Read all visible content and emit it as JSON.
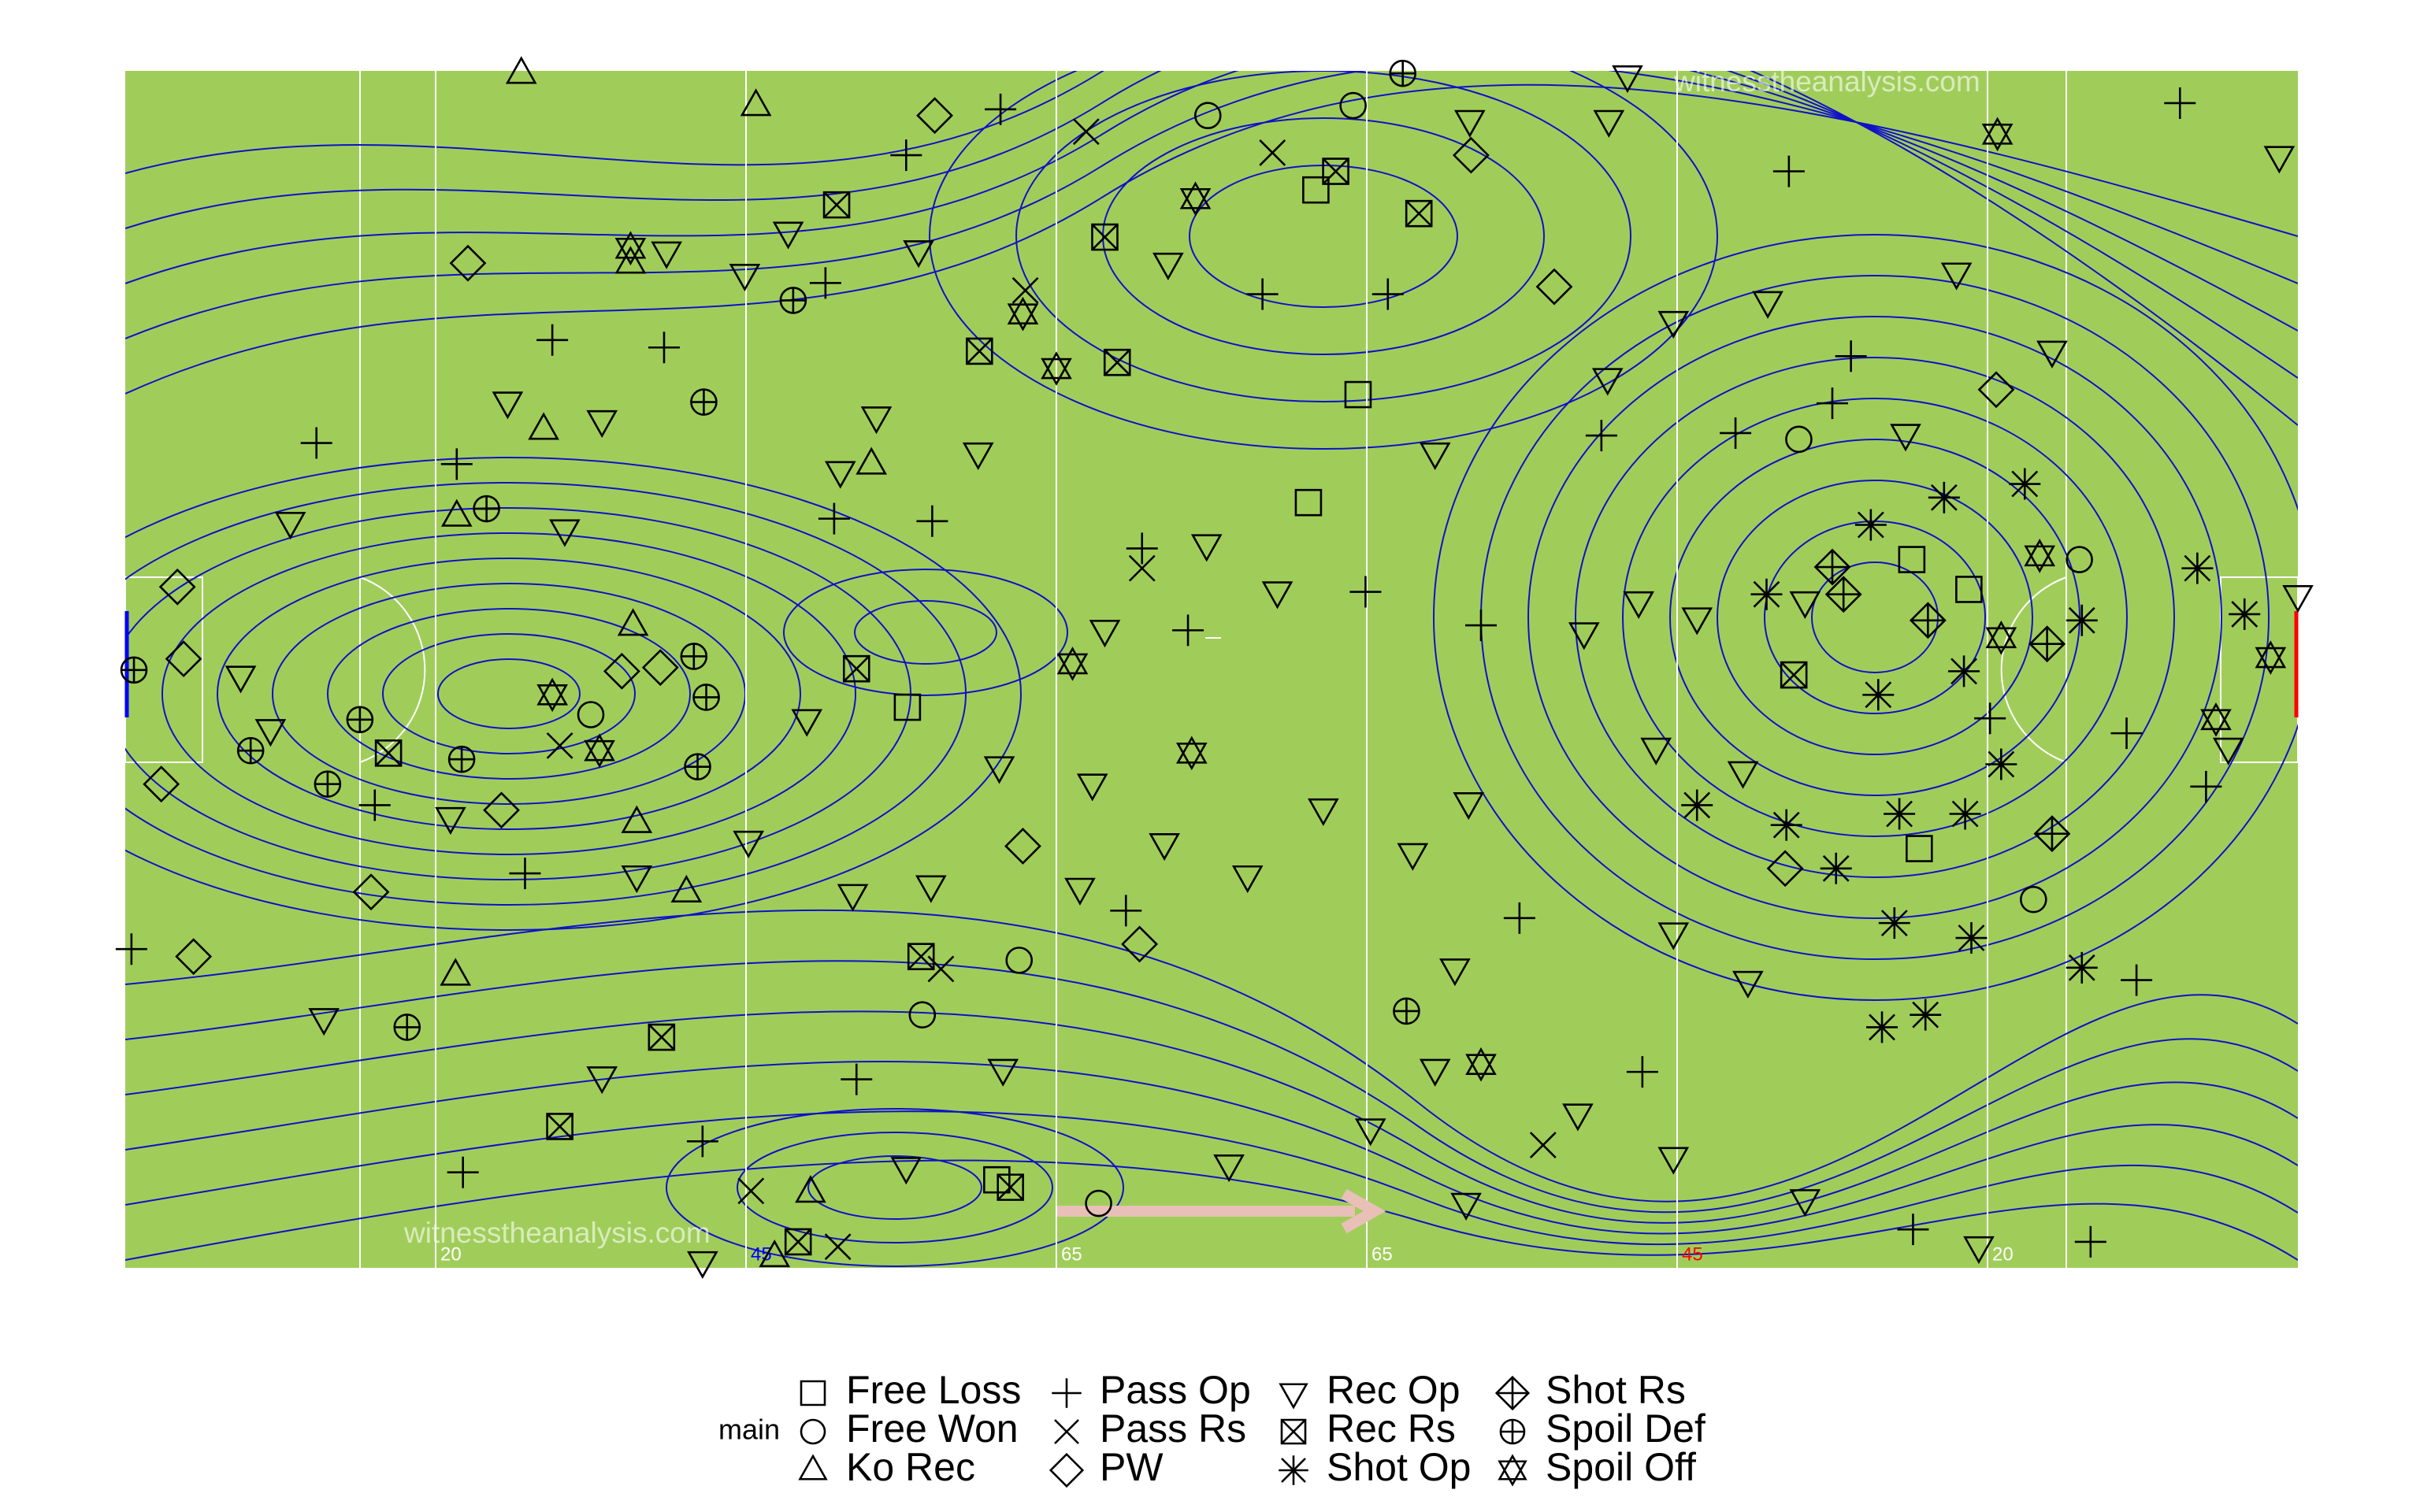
{
  "chart_data": {
    "type": "scatter",
    "xlim": [
      0,
      175
    ],
    "ylim": [
      0,
      96.5
    ],
    "xticks": [
      {
        "value": 25,
        "label": "20"
      },
      {
        "value": 50,
        "label": "45"
      },
      {
        "value": 75,
        "label": "65"
      },
      {
        "value": 100,
        "label": "65"
      },
      {
        "value": 125,
        "label": "45"
      },
      {
        "value": 150,
        "label": "20"
      }
    ],
    "xtick_colors": [
      "#ffffff",
      "#0000ff",
      "#ffffff",
      "#ffffff",
      "#ff0000",
      "#ffffff"
    ],
    "grid": true,
    "legend_title": "main",
    "legend_position": "bottom",
    "annotations": [
      "witnesstheanalysis.com",
      "witnesstheanalysis.com"
    ],
    "series": [
      {
        "name": "Free Loss",
        "marker": "square",
        "color": "#000000",
        "x": [
          99.3,
          95.3,
          63,
          70.2,
          144.5,
          143.9,
          148.5,
          95.9
        ],
        "values": [
          70.4,
          61.7,
          45.2,
          7.1,
          33.8,
          57.1,
          54.7,
          86.9
        ]
      },
      {
        "name": "Free Won",
        "marker": "circle",
        "color": "#000000",
        "x": [
          87.2,
          98.9,
          37.5,
          64.2,
          78.4,
          153.7,
          157.4,
          134.8,
          72
        ],
        "values": [
          92.9,
          93.7,
          44.6,
          20.4,
          5.2,
          29.7,
          57.1,
          66.8,
          24.8
        ]
      },
      {
        "name": "Ko Rec",
        "marker": "triangle",
        "color": "#000000",
        "x": [
          31.9,
          50.8,
          40.7,
          33.7,
          60.1,
          26.7,
          40.9,
          41.2,
          45.2,
          26.6,
          55.2,
          52.3
        ],
        "values": [
          96.3,
          93.7,
          81,
          67.6,
          64.8,
          60.6,
          51.8,
          35.9,
          30.3,
          23.6,
          6.1,
          0.9
        ]
      },
      {
        "name": "Pass Op",
        "marker": "plus",
        "color": "#000000",
        "x": [
          70.5,
          62.9,
          56.4,
          43.4,
          15.4,
          26.7,
          57.1,
          65,
          81.9,
          85.6,
          99.9,
          109.2,
          129.7,
          137.5,
          165.5,
          134,
          161.2,
          0.5,
          32.2,
          80.6,
          112.3,
          122.2,
          144,
          158.3,
          162,
          58.9,
          46.5,
          27.2,
          20.1,
          167.6,
          150.2,
          118.9,
          101.7,
          91.6,
          34.4,
          139
        ],
        "values": [
          93.4,
          89.7,
          79.4,
          74.2,
          66.5,
          64.8,
          60.4,
          60.2,
          58,
          51.4,
          54.5,
          51.8,
          67.3,
          69.7,
          93.9,
          88.4,
          43.1,
          25.7,
          31.8,
          28.8,
          28.2,
          15.8,
          3.1,
          2.1,
          23.2,
          15.2,
          10.2,
          7.7,
          37.3,
          38.8,
          44.3,
          67.1,
          78.5,
          78.5,
          74.8,
          73.5
        ]
      },
      {
        "name": "Pass Rs",
        "marker": "cross",
        "color": "#000000",
        "x": [
          92.4,
          77.4,
          81.9,
          65.7,
          57.4,
          114.2,
          50.4,
          72.5,
          35
        ],
        "values": [
          89.9,
          91.6,
          56.4,
          24.1,
          1.7,
          9.9,
          6.2,
          78.8,
          42.1
        ]
      },
      {
        "name": "PW",
        "marker": "diamond",
        "color": "#000000",
        "x": [
          27.6,
          65.2,
          108.4,
          115.1,
          150.7,
          4.2,
          4.7,
          2.9,
          30.3,
          19.8,
          5.5,
          72.3,
          81.7,
          133.7,
          43.1,
          40
        ],
        "values": [
          81,
          92.9,
          89.7,
          79.1,
          70.8,
          54.9,
          49.1,
          39,
          36.9,
          30.3,
          25.1,
          34,
          26.1,
          32.2,
          48.4,
          48.1
        ]
      },
      {
        "name": "Rec Op",
        "marker": "triangle-down",
        "color": "#000000",
        "x": [
          121,
          173.5,
          119.5,
          108.3,
          84,
          63.9,
          49.9,
          13.3,
          9.3,
          11.7,
          16,
          38.4,
          58.6,
          64.9,
          76.9,
          83.7,
          90.4,
          96.5,
          105.5,
          119.4,
          124.7,
          132.3,
          147.5,
          155.2,
          143.4,
          175,
          169.4,
          149.3,
          135.3,
          124.7,
          117,
          108,
          100.3,
          88.9,
          70.7,
          62.9,
          46.5,
          105.5,
          130.7,
          124.7,
          123.3,
          135.3,
          130.3,
          121.9,
          92.8,
          87.1,
          78.9,
          77.9,
          70.4,
          54.9,
          50.2,
          41.2,
          26.2,
          35.4,
          30.8,
          38.4,
          43.6,
          53.4,
          60.5,
          68.7,
          57.6,
          108.2,
          103.7,
          107.1,
          117.5,
          126.6
        ],
        "values": [
          96.1,
          89.6,
          92.5,
          92.5,
          81,
          82,
          80.1,
          60.1,
          47.7,
          43.4,
          20.1,
          15.4,
          30.1,
          30.8,
          30.6,
          34.2,
          31.6,
          37,
          65.7,
          71.7,
          76.3,
          77.9,
          80.2,
          73.9,
          67.2,
          54.2,
          41.9,
          1.7,
          5.5,
          8.9,
          12.4,
          5.2,
          11.2,
          8.3,
          16,
          8.1,
          0.5,
          16,
          23.1,
          27,
          41.9,
          53.7,
          40,
          53.7,
          54.5,
          58.3,
          51.4,
          39,
          40.4,
          44.2,
          34.4,
          31.6,
          36.3,
          59.5,
          69.8,
          68.3,
          81.9,
          83.5,
          68.6,
          65.7,
          64.2,
          37.5,
          33.4,
          24.1,
          51.2,
          52.4
        ]
      },
      {
        "name": "Rec Rs",
        "marker": "boxed-cross",
        "color": "#000000",
        "x": [
          97.5,
          57.3,
          78.9,
          68.8,
          79.9,
          58.9,
          21.2,
          43.2,
          35,
          64.1,
          71.3,
          54.2,
          134.4,
          104.2
        ],
        "values": [
          88.4,
          85.7,
          83.1,
          73.9,
          73,
          48.3,
          41.5,
          18.6,
          11.4,
          25.1,
          6.5,
          2.1,
          47.8,
          85
        ]
      },
      {
        "name": "Shot Op",
        "marker": "asterisk",
        "color": "#000000",
        "x": [
          146.5,
          153,
          140.6,
          148.1,
          141.2,
          126.6,
          133.8,
          142.9,
          148.2,
          151.1,
          157.6,
          166.9,
          170.7,
          142.5,
          148.7,
          145,
          141.5,
          157.6,
          132.2,
          137.8
        ],
        "values": [
          62.1,
          63.2,
          59.9,
          48.1,
          46.2,
          37.3,
          35.7,
          36.6,
          36.6,
          40.6,
          52.2,
          56.4,
          52.7,
          27.8,
          26.6,
          20.4,
          19.4,
          24.2,
          54.3,
          32.2
        ]
      },
      {
        "name": "Shot Rs",
        "marker": "diamond-plus",
        "color": "#000000",
        "x": [
          137.5,
          145.2,
          154.8,
          155.2,
          138.4
        ],
        "values": [
          56.5,
          52.2,
          50.3,
          35,
          54.3
        ]
      },
      {
        "name": "Spoil Def",
        "marker": "circle-plus",
        "color": "#000000",
        "x": [
          102.9,
          53.8,
          46.6,
          29.1,
          0.7,
          18.9,
          10.1,
          16.3,
          27.1,
          46.1,
          45.8,
          46.8,
          22.7,
          103.2
        ],
        "values": [
          96.3,
          78,
          69.8,
          61.2,
          48.2,
          44.2,
          41.7,
          39,
          41,
          40.4,
          49.3,
          46,
          19.4,
          20.7
        ]
      },
      {
        "name": "Spoil Off",
        "marker": "star",
        "color": "#000000",
        "x": [
          150.8,
          86.2,
          72.3,
          75,
          40.7,
          34.4,
          85.9,
          76.3,
          151.1,
          172.8,
          168.4,
          109.2,
          154.2,
          38.2
        ],
        "values": [
          91.4,
          86.2,
          76.9,
          72.5,
          82.2,
          46.2,
          41.5,
          48.7,
          50.8,
          49.2,
          44.2,
          16.4,
          57.4,
          41.7
        ]
      }
    ]
  }
}
